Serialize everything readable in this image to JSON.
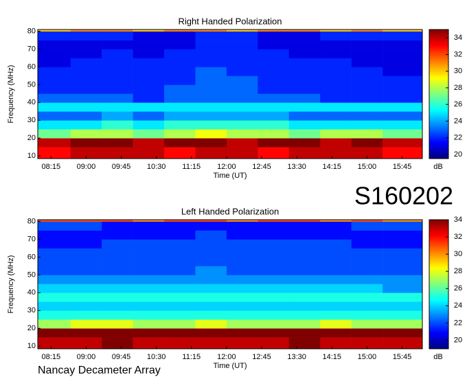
{
  "chart_data": [
    {
      "type": "heatmap",
      "title": "Right Handed Polarization",
      "x_label": "Time (UT)",
      "y_label": "Frequency (MHz)",
      "colorbar_label": "dB",
      "colormap": "jet",
      "xbins": [
        478,
        520,
        560,
        600,
        640,
        680,
        720,
        760,
        800,
        840,
        880,
        920,
        971
      ],
      "ybins": [
        8.5,
        15,
        20,
        25,
        30,
        35,
        40,
        45,
        50,
        55,
        60,
        65,
        70,
        75,
        80,
        81
      ],
      "z": [
        [
          33,
          34,
          34,
          34,
          33,
          34,
          34,
          33,
          34,
          34,
          34,
          33
        ],
        [
          34,
          35,
          35,
          34,
          35,
          35,
          34,
          35,
          35,
          34,
          35,
          34
        ],
        [
          27,
          28,
          28,
          27,
          28,
          29,
          28,
          28,
          27,
          28,
          28,
          27
        ],
        [
          25,
          25,
          26,
          25,
          26,
          26,
          26,
          26,
          25,
          25,
          25,
          25
        ],
        [
          23,
          23,
          24,
          23,
          24,
          24,
          24,
          24,
          23,
          23,
          23,
          23
        ],
        [
          25,
          25,
          25,
          25,
          25,
          25,
          25,
          25,
          25,
          25,
          25,
          25
        ],
        [
          23,
          23,
          23,
          22,
          23,
          23,
          23,
          23,
          23,
          22,
          22,
          22
        ],
        [
          22,
          22,
          22,
          22,
          23,
          23,
          23,
          22,
          22,
          22,
          22,
          22
        ],
        [
          22,
          22,
          22,
          22,
          22,
          23,
          23,
          22,
          22,
          22,
          22,
          22
        ],
        [
          22,
          22,
          22,
          22,
          22,
          23,
          22,
          22,
          22,
          22,
          22,
          21
        ],
        [
          21,
          22,
          22,
          22,
          22,
          22,
          22,
          22,
          22,
          22,
          21,
          21
        ],
        [
          21,
          21,
          22,
          21,
          22,
          22,
          22,
          22,
          21,
          21,
          21,
          21
        ],
        [
          21,
          21,
          21,
          21,
          21,
          22,
          22,
          21,
          21,
          21,
          21,
          21
        ],
        [
          22,
          22,
          22,
          21,
          21,
          22,
          22,
          21,
          21,
          22,
          22,
          22
        ],
        [
          30,
          31,
          31,
          30,
          31,
          31,
          30,
          31,
          31,
          30,
          31,
          30
        ]
      ],
      "xlim": [
        478,
        971
      ],
      "ylim": [
        8.5,
        81
      ],
      "zlim": [
        19.5,
        35
      ],
      "xticks": [
        {
          "value": 495,
          "label": "08:15"
        },
        {
          "value": 540,
          "label": "09:00"
        },
        {
          "value": 585,
          "label": "09:45"
        },
        {
          "value": 630,
          "label": "10:30"
        },
        {
          "value": 675,
          "label": "11:15"
        },
        {
          "value": 720,
          "label": "12:00"
        },
        {
          "value": 765,
          "label": "12:45"
        },
        {
          "value": 810,
          "label": "13:30"
        },
        {
          "value": 855,
          "label": "14:15"
        },
        {
          "value": 900,
          "label": "15:00"
        },
        {
          "value": 945,
          "label": "15:45"
        }
      ],
      "yticks": [
        10,
        20,
        30,
        40,
        50,
        60,
        70,
        80
      ],
      "cticks": [
        20,
        22,
        24,
        26,
        28,
        30,
        32,
        34
      ]
    },
    {
      "type": "heatmap",
      "title": "Left Handed Polarization",
      "x_label": "Time (UT)",
      "y_label": "Frequency (MHz)",
      "colorbar_label": "dB",
      "colormap": "jet",
      "xbins": [
        478,
        520,
        560,
        600,
        640,
        680,
        720,
        760,
        800,
        840,
        880,
        920,
        971
      ],
      "ybins": [
        8.5,
        15,
        20,
        25,
        30,
        35,
        40,
        45,
        50,
        55,
        60,
        65,
        70,
        75,
        80,
        81
      ],
      "z": [
        [
          33,
          33,
          34,
          33,
          33,
          33,
          33,
          33,
          34,
          33,
          33,
          33
        ],
        [
          34,
          34,
          34,
          34,
          34,
          34,
          34,
          34,
          34,
          34,
          34,
          34
        ],
        [
          27,
          28,
          28,
          27,
          27,
          28,
          27,
          27,
          27,
          28,
          27,
          27
        ],
        [
          25,
          25,
          25,
          25,
          25,
          25,
          25,
          25,
          25,
          25,
          25,
          25
        ],
        [
          24,
          24,
          24,
          24,
          24,
          24,
          24,
          24,
          24,
          24,
          24,
          24
        ],
        [
          25,
          25,
          25,
          25,
          25,
          25,
          25,
          25,
          25,
          25,
          25,
          25
        ],
        [
          24,
          24,
          24,
          24,
          24,
          24,
          24,
          24,
          24,
          24,
          24,
          23
        ],
        [
          23,
          23,
          23,
          23,
          23,
          23,
          23,
          23,
          23,
          23,
          23,
          23
        ],
        [
          22,
          22,
          22,
          22,
          22,
          23,
          22,
          22,
          22,
          22,
          22,
          22
        ],
        [
          22,
          22,
          22,
          22,
          22,
          22,
          22,
          22,
          22,
          22,
          22,
          22
        ],
        [
          22,
          22,
          22,
          22,
          22,
          22,
          22,
          22,
          22,
          22,
          22,
          22
        ],
        [
          21,
          21,
          22,
          22,
          22,
          22,
          22,
          22,
          22,
          22,
          21,
          21
        ],
        [
          21,
          21,
          21,
          21,
          21,
          22,
          21,
          21,
          21,
          21,
          21,
          21
        ],
        [
          22,
          22,
          21,
          21,
          21,
          21,
          21,
          21,
          21,
          21,
          22,
          22
        ],
        [
          31,
          31,
          31,
          30,
          31,
          31,
          30,
          31,
          31,
          30,
          31,
          30
        ]
      ],
      "xlim": [
        478,
        971
      ],
      "ylim": [
        8.5,
        81
      ],
      "zlim": [
        19,
        34
      ],
      "xticks": [
        {
          "value": 495,
          "label": "08:15"
        },
        {
          "value": 540,
          "label": "09:00"
        },
        {
          "value": 585,
          "label": "09:45"
        },
        {
          "value": 630,
          "label": "10:30"
        },
        {
          "value": 675,
          "label": "11:15"
        },
        {
          "value": 720,
          "label": "12:00"
        },
        {
          "value": 765,
          "label": "12:45"
        },
        {
          "value": 810,
          "label": "13:30"
        },
        {
          "value": 855,
          "label": "14:15"
        },
        {
          "value": 900,
          "label": "15:00"
        },
        {
          "value": 945,
          "label": "15:45"
        }
      ],
      "yticks": [
        10,
        20,
        30,
        40,
        50,
        60,
        70,
        80
      ],
      "cticks": [
        20,
        22,
        24,
        26,
        28,
        30,
        32,
        34
      ]
    }
  ],
  "observation_id": "S160202",
  "instrument": "Nancay Decameter Array"
}
